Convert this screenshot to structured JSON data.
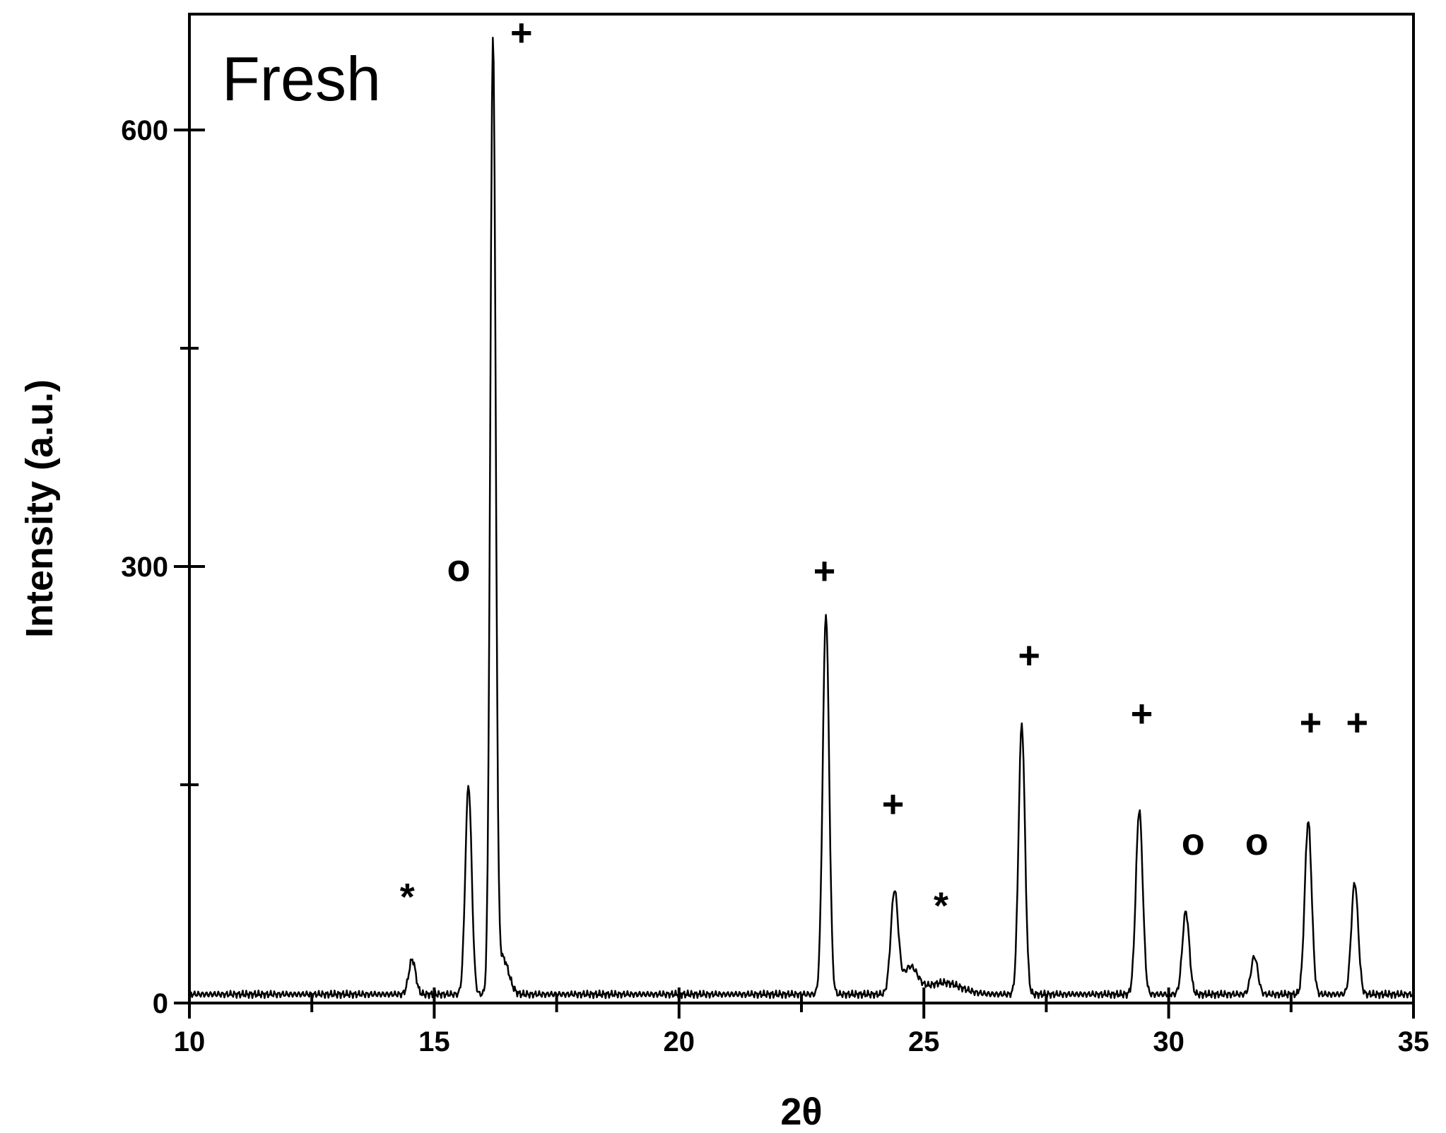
{
  "chart_data": {
    "type": "line",
    "title": "",
    "panel_label": "Fresh",
    "xlabel": "2θ",
    "ylabel": "Intensity (a.u.)",
    "xlim": [
      10,
      35
    ],
    "ylim": [
      0,
      665
    ],
    "x_ticks": [
      10,
      15,
      20,
      25,
      30,
      35
    ],
    "x_tick_labels": [
      "10",
      "15",
      "20",
      "25",
      "30",
      "35"
    ],
    "y_ticks": [
      0,
      300,
      600
    ],
    "y_tick_labels": [
      "0",
      "300",
      "600"
    ],
    "grid": false,
    "legend": false,
    "series": [
      {
        "baseline": 6,
        "peaks": [
          {
            "x": 14.55,
            "height": 24,
            "width": 0.07
          },
          {
            "x": 15.7,
            "height": 144,
            "width": 0.065
          },
          {
            "x": 16.2,
            "height": 655,
            "width": 0.055
          },
          {
            "x": 16.4,
            "height": 25,
            "width": 0.12
          },
          {
            "x": 23.0,
            "height": 262,
            "width": 0.065
          },
          {
            "x": 24.4,
            "height": 70,
            "width": 0.075
          },
          {
            "x": 24.72,
            "height": 18,
            "width": 0.15
          },
          {
            "x": 25.4,
            "height": 8,
            "width": 0.35
          },
          {
            "x": 27.0,
            "height": 186,
            "width": 0.065
          },
          {
            "x": 29.4,
            "height": 127,
            "width": 0.07
          },
          {
            "x": 30.35,
            "height": 57,
            "width": 0.07
          },
          {
            "x": 31.75,
            "height": 26,
            "width": 0.07
          },
          {
            "x": 32.85,
            "height": 119,
            "width": 0.07
          },
          {
            "x": 33.8,
            "height": 77,
            "width": 0.07
          }
        ]
      }
    ],
    "annotations": [
      {
        "text": "+",
        "x": 16.78,
        "y": 658
      },
      {
        "text": "o",
        "x": 15.5,
        "y": 290
      },
      {
        "text": "*",
        "x": 14.45,
        "y": 64
      },
      {
        "text": "+",
        "x": 22.97,
        "y": 288
      },
      {
        "text": "+",
        "x": 24.37,
        "y": 128
      },
      {
        "text": "*",
        "x": 25.35,
        "y": 58
      },
      {
        "text": "+",
        "x": 27.15,
        "y": 230
      },
      {
        "text": "+",
        "x": 29.45,
        "y": 190
      },
      {
        "text": "o",
        "x": 30.5,
        "y": 102
      },
      {
        "text": "o",
        "x": 31.8,
        "y": 102
      },
      {
        "text": "+",
        "x": 32.9,
        "y": 184
      },
      {
        "text": "+",
        "x": 33.85,
        "y": 184
      }
    ]
  }
}
